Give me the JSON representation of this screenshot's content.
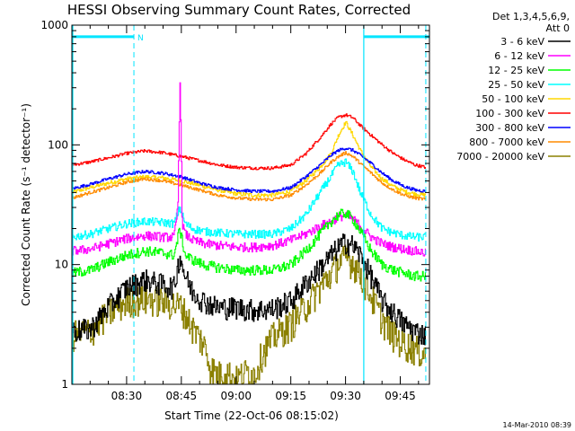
{
  "chart_data": {
    "type": "line",
    "title": "HESSI Observing Summary Count Rates, Corrected",
    "xlabel": "Start Time (22-Oct-06 08:15:02)",
    "ylabel": "Corrected Count Rate (s⁻¹ detector⁻¹)",
    "yscale": "log",
    "ylim": [
      1,
      1000
    ],
    "y_ticks": [
      {
        "value": 1,
        "label": "1"
      },
      {
        "value": 10,
        "label": "10"
      },
      {
        "value": 100,
        "label": "100"
      },
      {
        "value": 1000,
        "label": "1000"
      }
    ],
    "x_unit": "minutes after 08:15:02",
    "xlim": [
      0,
      98
    ],
    "x_ticks": [
      {
        "value": 15,
        "label": "08:30"
      },
      {
        "value": 30,
        "label": "08:45"
      },
      {
        "value": 45,
        "label": "09:00"
      },
      {
        "value": 60,
        "label": "09:15"
      },
      {
        "value": 75,
        "label": "09:30"
      },
      {
        "value": 90,
        "label": "09:45"
      }
    ],
    "legend": {
      "header": [
        "Det 1,3,4,5,6,9,",
        "Att 0"
      ],
      "placement": "right"
    },
    "series": [
      {
        "name": "3 - 6 keV",
        "color": "#000000",
        "x": [
          0,
          5,
          10,
          15,
          20,
          25,
          28,
          29.5,
          31,
          33,
          36,
          40,
          45,
          50,
          55,
          60,
          64,
          68,
          71,
          73,
          75,
          77,
          79,
          82,
          85,
          88,
          91,
          94,
          97
        ],
        "y": [
          2.8,
          2.9,
          4.5,
          6.5,
          7.5,
          6.8,
          6.5,
          12,
          8,
          6,
          5,
          4.4,
          4.4,
          4.2,
          4.3,
          5,
          7,
          9.5,
          12,
          14,
          15.5,
          14.5,
          12,
          8,
          5,
          4,
          3.2,
          2.8,
          2.6
        ]
      },
      {
        "name": "6 - 12 keV",
        "color": "#ff00ff",
        "x": [
          0,
          5,
          10,
          15,
          20,
          25,
          28,
          29,
          29.6,
          30.2,
          31,
          33,
          36,
          40,
          45,
          50,
          55,
          60,
          64,
          68,
          71,
          73,
          75,
          77,
          79,
          82,
          85,
          88,
          91,
          94,
          97
        ],
        "y": [
          13,
          13.5,
          15,
          16.5,
          17.5,
          17,
          17,
          30,
          380,
          22,
          18,
          16,
          15,
          14.5,
          14,
          14,
          14.5,
          16,
          18,
          21,
          23,
          25,
          26,
          24,
          21,
          17,
          15,
          14,
          13.5,
          13,
          12.5
        ]
      },
      {
        "name": "12 - 25 keV",
        "color": "#00ff00",
        "x": [
          0,
          5,
          10,
          15,
          20,
          25,
          28,
          29.5,
          31,
          33,
          36,
          40,
          45,
          50,
          55,
          60,
          64,
          68,
          71,
          73,
          75,
          77,
          79,
          82,
          85,
          88,
          91,
          94,
          97
        ],
        "y": [
          8.5,
          9,
          10.5,
          12,
          13,
          12.5,
          12,
          20,
          12,
          11,
          10,
          9.5,
          9,
          9,
          9,
          10,
          13,
          18,
          23,
          26,
          27,
          24,
          19,
          13,
          10,
          9,
          8.5,
          8,
          8
        ]
      },
      {
        "name": "25 - 50 keV",
        "color": "#00ffff",
        "x": [
          0,
          5,
          10,
          15,
          20,
          25,
          28,
          29.5,
          31,
          33,
          36,
          40,
          45,
          50,
          55,
          60,
          64,
          68,
          71,
          73,
          75,
          77,
          79,
          82,
          85,
          88,
          91,
          94,
          97
        ],
        "y": [
          17,
          18,
          20,
          22,
          23,
          22.5,
          22,
          30,
          22,
          20,
          19,
          18.5,
          18,
          18,
          18,
          20,
          26,
          40,
          55,
          68,
          72,
          60,
          40,
          26,
          20,
          18.5,
          17.5,
          17,
          17
        ]
      },
      {
        "name": "50 - 100 keV",
        "color": "#ffd700",
        "x": [
          0,
          5,
          10,
          15,
          20,
          25,
          30,
          35,
          40,
          45,
          50,
          55,
          60,
          64,
          68,
          71,
          73,
          75,
          77,
          79,
          82,
          85,
          88,
          91,
          94,
          97
        ],
        "y": [
          40,
          44,
          48,
          52,
          54,
          53,
          50,
          46,
          42,
          39,
          38,
          38,
          41,
          50,
          65,
          85,
          120,
          155,
          120,
          90,
          65,
          52,
          45,
          41,
          39,
          38
        ]
      },
      {
        "name": "100 - 300 keV",
        "color": "#ff0000",
        "x": [
          0,
          5,
          10,
          15,
          20,
          25,
          30,
          35,
          40,
          45,
          50,
          55,
          60,
          64,
          68,
          71,
          73,
          75,
          77,
          79,
          82,
          85,
          88,
          91,
          94,
          97
        ],
        "y": [
          68,
          72,
          78,
          85,
          89,
          86,
          80,
          74,
          68,
          65,
          64,
          64,
          68,
          84,
          115,
          150,
          170,
          178,
          168,
          145,
          120,
          100,
          85,
          75,
          68,
          65
        ]
      },
      {
        "name": "300 - 800 keV",
        "color": "#0000ff",
        "x": [
          0,
          5,
          10,
          15,
          20,
          25,
          30,
          35,
          40,
          45,
          50,
          55,
          60,
          64,
          68,
          71,
          73,
          75,
          77,
          79,
          82,
          85,
          88,
          91,
          94,
          97
        ],
        "y": [
          43,
          47,
          52,
          57,
          60,
          58,
          54,
          48,
          44,
          42,
          41,
          41,
          44,
          54,
          68,
          82,
          90,
          94,
          90,
          82,
          70,
          58,
          50,
          45,
          42,
          41
        ]
      },
      {
        "name": "800 - 7000 keV",
        "color": "#ff8c00",
        "x": [
          0,
          5,
          10,
          15,
          20,
          25,
          30,
          35,
          40,
          45,
          50,
          55,
          60,
          64,
          68,
          71,
          73,
          75,
          77,
          79,
          82,
          85,
          88,
          91,
          94,
          97
        ],
        "y": [
          36,
          40,
          44,
          49,
          52,
          50,
          46,
          42,
          38,
          36,
          35,
          35,
          38,
          46,
          58,
          72,
          80,
          86,
          80,
          70,
          58,
          48,
          42,
          38,
          36,
          35
        ]
      },
      {
        "name": "7000 - 20000 keV",
        "color": "#8b8000",
        "x": [
          0,
          5,
          10,
          15,
          20,
          25,
          30,
          33,
          36,
          38,
          40,
          42,
          45,
          48,
          50,
          52,
          55,
          60,
          64,
          68,
          71,
          73,
          75,
          77,
          79,
          82,
          85,
          88,
          91,
          94,
          97
        ],
        "y": [
          2.6,
          2.8,
          4,
          5,
          5.2,
          5,
          4.5,
          3,
          2.2,
          1.4,
          1.2,
          1.3,
          1.1,
          1.3,
          1.2,
          1.8,
          2.5,
          3.2,
          4.5,
          6.5,
          8.5,
          10.5,
          11.5,
          10.5,
          8.5,
          5.5,
          3.5,
          2.6,
          2.2,
          2,
          1.8
        ]
      }
    ],
    "annotations": {
      "mark_label": "N",
      "bars": [
        {
          "from": 0,
          "to": 17,
          "level": 800
        },
        {
          "from": 80,
          "to": 98,
          "level": 800
        }
      ],
      "vlines_dashed": [
        17,
        97
      ],
      "vlines_solid": [
        80
      ]
    },
    "colors": {
      "annotation": "#00e5ff"
    }
  },
  "timestamp": "14-Mar-2010 08:39"
}
